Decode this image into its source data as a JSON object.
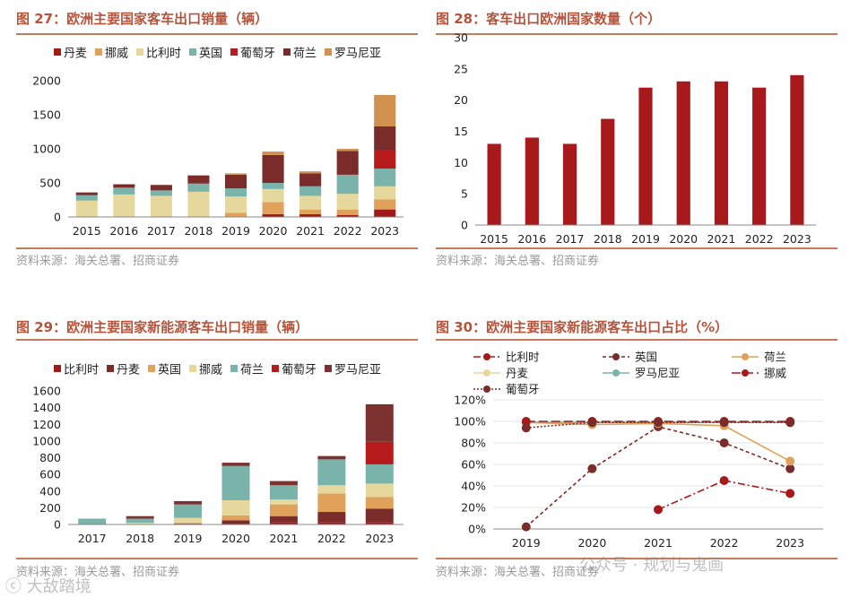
{
  "charts": {
    "c27": {
      "title": "图 27：欧洲主要国家客车出口销量（辆）",
      "source": "资料来源：海关总署、招商证券"
    },
    "c28": {
      "title": "图 28：客车出口欧洲国家数量（个）",
      "source": "资料来源：海关总署、招商证券"
    },
    "c29": {
      "title": "图 29：欧洲主要国家新能源客车出口销量（辆）",
      "source": "资料来源：海关总署、招商证券"
    },
    "c30": {
      "title": "图 30：欧洲主要国家新能源客车出口占比（%）",
      "source": "资料来源：海关总署、招商证券"
    }
  },
  "watermark": {
    "left": "ⓒ 大敌踏境",
    "right": "公众号 · 规划与鬼画"
  },
  "chart_data": [
    {
      "id": "c27",
      "type": "stacked-bar",
      "title": "图 27：欧洲主要国家客车出口销量（辆）",
      "categories": [
        "2015",
        "2016",
        "2017",
        "2018",
        "2019",
        "2020",
        "2021",
        "2022",
        "2023"
      ],
      "ylim": [
        0,
        2000
      ],
      "yticks": [
        0,
        500,
        1000,
        1500,
        2000
      ],
      "legend_position": "top",
      "series": [
        {
          "name": "丹麦",
          "color": "#9e1b1b",
          "values": [
            0,
            0,
            0,
            0,
            0,
            40,
            40,
            30,
            110
          ]
        },
        {
          "name": "挪威",
          "color": "#e0a15a",
          "values": [
            0,
            0,
            0,
            0,
            60,
            180,
            70,
            80,
            150
          ]
        },
        {
          "name": "比利时",
          "color": "#e6d79c",
          "values": [
            240,
            330,
            310,
            370,
            240,
            190,
            200,
            230,
            190
          ]
        },
        {
          "name": "英国",
          "color": "#79b3aa",
          "values": [
            80,
            100,
            80,
            120,
            120,
            90,
            140,
            280,
            260
          ]
        },
        {
          "name": "葡萄牙",
          "color": "#b81b1b",
          "values": [
            0,
            0,
            0,
            0,
            0,
            0,
            0,
            0,
            270
          ]
        },
        {
          "name": "荷兰",
          "color": "#7a2c2a",
          "values": [
            40,
            50,
            80,
            120,
            200,
            410,
            190,
            350,
            350
          ]
        },
        {
          "name": "罗马尼亚",
          "color": "#d3914f",
          "values": [
            0,
            0,
            0,
            0,
            20,
            50,
            30,
            30,
            460
          ]
        }
      ]
    },
    {
      "id": "c28",
      "type": "bar",
      "title": "图 28：客车出口欧洲国家数量（个）",
      "categories": [
        "2015",
        "2016",
        "2017",
        "2018",
        "2019",
        "2020",
        "2021",
        "2022",
        "2023"
      ],
      "values": [
        13,
        14,
        13,
        17,
        22,
        23,
        23,
        22,
        24
      ],
      "ylim": [
        0,
        30
      ],
      "yticks": [
        0,
        5,
        10,
        15,
        20,
        25,
        30
      ],
      "color": "#a8191b"
    },
    {
      "id": "c29",
      "type": "stacked-bar",
      "title": "图 29：欧洲主要国家新能源客车出口销量（辆）",
      "categories": [
        "2017",
        "2018",
        "2019",
        "2020",
        "2021",
        "2022",
        "2023"
      ],
      "ylim": [
        0,
        1600
      ],
      "yticks": [
        0,
        200,
        400,
        600,
        800,
        1000,
        1200,
        1400,
        1600
      ],
      "legend_position": "top",
      "series": [
        {
          "name": "比利时",
          "color": "#9e1b1b",
          "values": [
            0,
            0,
            0,
            0,
            30,
            30,
            30
          ]
        },
        {
          "name": "丹麦",
          "color": "#7a2c2a",
          "values": [
            0,
            0,
            10,
            50,
            70,
            120,
            160
          ]
        },
        {
          "name": "英国",
          "color": "#e0a15a",
          "values": [
            0,
            0,
            10,
            60,
            140,
            220,
            140
          ]
        },
        {
          "name": "挪威",
          "color": "#e6d79c",
          "values": [
            0,
            20,
            60,
            180,
            60,
            100,
            160
          ]
        },
        {
          "name": "荷兰",
          "color": "#79b3aa",
          "values": [
            70,
            50,
            160,
            410,
            170,
            310,
            230
          ]
        },
        {
          "name": "葡萄牙",
          "color": "#b81b1b",
          "values": [
            0,
            0,
            0,
            0,
            0,
            0,
            270
          ]
        },
        {
          "name": "罗马尼亚",
          "color": "#7e3230",
          "values": [
            0,
            30,
            40,
            40,
            50,
            40,
            450
          ]
        }
      ]
    },
    {
      "id": "c30",
      "type": "line",
      "title": "图 30：欧洲主要国家新能源客车出口占比（%）",
      "x": [
        "2019",
        "2020",
        "2021",
        "2022",
        "2023"
      ],
      "ylim": [
        0,
        120
      ],
      "yticks": [
        0,
        20,
        40,
        60,
        80,
        100,
        120
      ],
      "ytick_labels": [
        "0%",
        "20%",
        "40%",
        "60%",
        "80%",
        "100%",
        "120%"
      ],
      "legend_position": "top",
      "series": [
        {
          "name": "比利时",
          "color": "#a8191b",
          "dash": "8,3,2,3",
          "values": [
            null,
            null,
            18,
            45,
            33
          ]
        },
        {
          "name": "英国",
          "color": "#7a2c2a",
          "dash": "4,3",
          "values": [
            2,
            56,
            95,
            80,
            56
          ]
        },
        {
          "name": "荷兰",
          "color": "#e0a15a",
          "dash": "",
          "values": [
            99,
            97,
            98,
            96,
            63
          ]
        },
        {
          "name": "丹麦",
          "color": "#e6d79c",
          "dash": "",
          "values": [
            99,
            99,
            99,
            99,
            99
          ]
        },
        {
          "name": "罗马尼亚",
          "color": "#79b3aa",
          "dash": "",
          "values": [
            99,
            99,
            99,
            99,
            99
          ]
        },
        {
          "name": "挪威",
          "color": "#a8191b",
          "dash": "10,4",
          "values": [
            100,
            100,
            100,
            100,
            100
          ]
        },
        {
          "name": "葡萄牙",
          "color": "#7a2c2a",
          "dash": "2,2",
          "values": [
            94,
            99,
            99,
            99,
            99
          ]
        }
      ]
    }
  ]
}
